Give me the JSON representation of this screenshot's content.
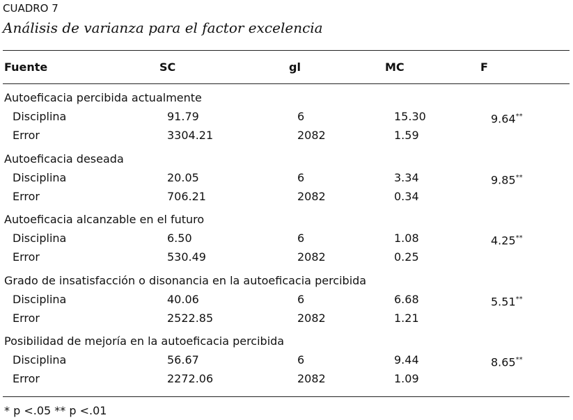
{
  "header": {
    "label": "CUADRO 7",
    "title": "Análisis de varianza para el factor excelencia"
  },
  "table": {
    "columns": [
      "Fuente",
      "SC",
      "gl",
      "MC",
      "F"
    ],
    "groups": [
      {
        "label": "Autoeficacia percibida actualmente",
        "rows": [
          {
            "source": "Disciplina",
            "sc": "91.79",
            "gl": "6",
            "mc": "15.30",
            "f": "9.64",
            "sig": "**"
          },
          {
            "source": "Error",
            "sc": "3304.21",
            "gl": "2082",
            "mc": "1.59"
          }
        ]
      },
      {
        "label": "Autoeficacia deseada",
        "rows": [
          {
            "source": "Disciplina",
            "sc": "20.05",
            "gl": "6",
            "mc": "3.34",
            "f": "9.85",
            "sig": "**"
          },
          {
            "source": "Error",
            "sc": "706.21",
            "gl": "2082",
            "mc": "0.34"
          }
        ]
      },
      {
        "label": "Autoeficacia alcanzable en el futuro",
        "rows": [
          {
            "source": "Disciplina",
            "sc": "6.50",
            "gl": "6",
            "mc": "1.08",
            "f": "4.25",
            "sig": "**"
          },
          {
            "source": "Error",
            "sc": "530.49",
            "gl": "2082",
            "mc": "0.25"
          }
        ]
      },
      {
        "label": "Grado de insatisfacción o disonancia en la autoeficacia percibida",
        "rows": [
          {
            "source": "Disciplina",
            "sc": "40.06",
            "gl": "6",
            "mc": "6.68",
            "f": "5.51",
            "sig": "**"
          },
          {
            "source": "Error",
            "sc": "2522.85",
            "gl": "2082",
            "mc": "1.21"
          }
        ]
      },
      {
        "label": "Posibilidad de mejoría en la autoeficacia percibida",
        "rows": [
          {
            "source": "Disciplina",
            "sc": "56.67",
            "gl": "6",
            "mc": "9.44",
            "f": "8.65",
            "sig": "**"
          },
          {
            "source": "Error",
            "sc": "2272.06",
            "gl": "2082",
            "mc": "1.09"
          }
        ]
      }
    ]
  },
  "footnote": "* p <.05 ** p <.01"
}
